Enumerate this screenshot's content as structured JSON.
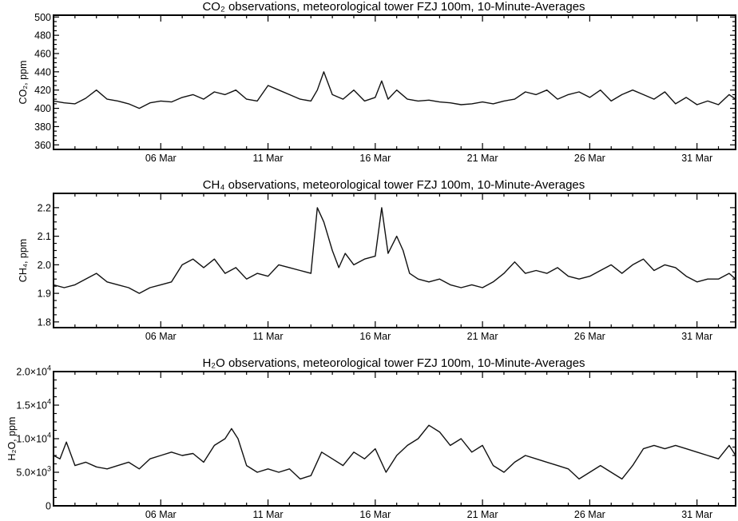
{
  "chart_data": [
    {
      "type": "line",
      "title": "CO₂ observations, meteorological tower FZJ 100m, 10-Minute-Averages",
      "ylabel": "CO₂, ppm",
      "xlabel": "",
      "xlim": [
        1,
        32.8
      ],
      "ylim": [
        355,
        502
      ],
      "yticks": [
        360,
        380,
        400,
        420,
        440,
        460,
        480,
        500
      ],
      "ytick_labels": [
        "360",
        "380",
        "400",
        "420",
        "440",
        "460",
        "480",
        "500"
      ],
      "xticks": [
        6,
        11,
        16,
        21,
        26,
        31
      ],
      "xtick_labels": [
        "06 Mar",
        "11 Mar",
        "16 Mar",
        "21 Mar",
        "26 Mar",
        "31 Mar"
      ],
      "grid": false,
      "series": [
        {
          "x": [
            1.0,
            1.5,
            2.0,
            2.5,
            3.0,
            3.5,
            4.0,
            4.5,
            5.0,
            5.5,
            6.0,
            6.5,
            7.0,
            7.5,
            8.0,
            8.5,
            9.0,
            9.5,
            10.0,
            10.5,
            11.0,
            11.5,
            12.0,
            12.5,
            13.0,
            13.3,
            13.6,
            14.0,
            14.5,
            15.0,
            15.5,
            16.0,
            16.3,
            16.6,
            17.0,
            17.5,
            18.0,
            18.5,
            19.0,
            19.5,
            20.0,
            20.5,
            21.0,
            21.5,
            22.0,
            22.5,
            23.0,
            23.5,
            24.0,
            24.5,
            25.0,
            25.5,
            26.0,
            26.5,
            27.0,
            27.5,
            28.0,
            28.5,
            29.0,
            29.5,
            30.0,
            30.5,
            31.0,
            31.5,
            32.0,
            32.5,
            32.8
          ],
          "y": [
            408,
            406,
            405,
            411,
            420,
            410,
            408,
            405,
            400,
            406,
            408,
            407,
            412,
            415,
            410,
            418,
            415,
            420,
            410,
            408,
            425,
            420,
            415,
            410,
            408,
            420,
            440,
            415,
            410,
            420,
            408,
            412,
            430,
            410,
            420,
            410,
            408,
            409,
            407,
            406,
            404,
            405,
            407,
            405,
            408,
            410,
            418,
            415,
            420,
            410,
            415,
            418,
            412,
            420,
            408,
            415,
            420,
            415,
            410,
            418,
            405,
            412,
            404,
            408,
            404,
            415,
            410
          ]
        }
      ]
    },
    {
      "type": "line",
      "title": "CH₄ observations, meteorological tower FZJ 100m, 10-Minute-Averages",
      "ylabel": "CH₄, ppm",
      "xlabel": "",
      "xlim": [
        1,
        32.8
      ],
      "ylim": [
        1.78,
        2.25
      ],
      "yticks": [
        1.8,
        1.9,
        2.0,
        2.1,
        2.2
      ],
      "ytick_labels": [
        "1.8",
        "1.9",
        "2.0",
        "2.1",
        "2.2"
      ],
      "xticks": [
        6,
        11,
        16,
        21,
        26,
        31
      ],
      "xtick_labels": [
        "06 Mar",
        "11 Mar",
        "16 Mar",
        "21 Mar",
        "26 Mar",
        "31 Mar"
      ],
      "grid": false,
      "series": [
        {
          "x": [
            1.0,
            1.5,
            2.0,
            2.5,
            3.0,
            3.5,
            4.0,
            4.5,
            5.0,
            5.5,
            6.0,
            6.5,
            7.0,
            7.5,
            8.0,
            8.5,
            9.0,
            9.5,
            10.0,
            10.5,
            11.0,
            11.5,
            12.0,
            12.5,
            13.0,
            13.3,
            13.6,
            14.0,
            14.3,
            14.6,
            15.0,
            15.5,
            16.0,
            16.3,
            16.6,
            17.0,
            17.3,
            17.6,
            18.0,
            18.5,
            19.0,
            19.5,
            20.0,
            20.5,
            21.0,
            21.5,
            22.0,
            22.5,
            23.0,
            23.5,
            24.0,
            24.5,
            25.0,
            25.5,
            26.0,
            26.5,
            27.0,
            27.5,
            28.0,
            28.5,
            29.0,
            29.5,
            30.0,
            30.5,
            31.0,
            31.5,
            32.0,
            32.5,
            32.8
          ],
          "y": [
            1.93,
            1.92,
            1.93,
            1.95,
            1.97,
            1.94,
            1.93,
            1.92,
            1.9,
            1.92,
            1.93,
            1.94,
            2.0,
            2.02,
            1.99,
            2.02,
            1.97,
            1.99,
            1.95,
            1.97,
            1.96,
            2.0,
            1.99,
            1.98,
            1.97,
            2.2,
            2.15,
            2.05,
            1.99,
            2.04,
            2.0,
            2.02,
            2.03,
            2.2,
            2.04,
            2.1,
            2.05,
            1.97,
            1.95,
            1.94,
            1.95,
            1.93,
            1.92,
            1.93,
            1.92,
            1.94,
            1.97,
            2.01,
            1.97,
            1.98,
            1.97,
            1.99,
            1.96,
            1.95,
            1.96,
            1.98,
            2.0,
            1.97,
            2.0,
            2.02,
            1.98,
            2.0,
            1.99,
            1.96,
            1.94,
            1.95,
            1.95,
            1.97,
            1.95
          ]
        }
      ]
    },
    {
      "type": "line",
      "title": "H₂O observations, meteorological tower FZJ 100m, 10-Minute-Averages",
      "ylabel": "H₂O, ppm",
      "xlabel": "",
      "xlim": [
        1,
        32.8
      ],
      "ylim": [
        0,
        20000
      ],
      "yticks": [
        0,
        5000,
        10000,
        15000,
        20000
      ],
      "ytick_labels": [
        {
          "mantissa": "0",
          "exponent": ""
        },
        {
          "mantissa": "5.0×10",
          "exponent": "3"
        },
        {
          "mantissa": "1.0×10",
          "exponent": "4"
        },
        {
          "mantissa": "1.5×10",
          "exponent": "4"
        },
        {
          "mantissa": "2.0×10",
          "exponent": "4"
        }
      ],
      "xticks": [
        6,
        11,
        16,
        21,
        26,
        31
      ],
      "xtick_labels": [
        "06 Mar",
        "11 Mar",
        "16 Mar",
        "21 Mar",
        "26 Mar",
        "31 Mar"
      ],
      "grid": false,
      "series": [
        {
          "x": [
            1.0,
            1.3,
            1.6,
            2.0,
            2.5,
            3.0,
            3.5,
            4.0,
            4.5,
            5.0,
            5.5,
            6.0,
            6.5,
            7.0,
            7.5,
            8.0,
            8.5,
            9.0,
            9.3,
            9.6,
            10.0,
            10.5,
            11.0,
            11.5,
            12.0,
            12.5,
            13.0,
            13.5,
            14.0,
            14.5,
            15.0,
            15.5,
            16.0,
            16.5,
            17.0,
            17.5,
            18.0,
            18.5,
            19.0,
            19.5,
            20.0,
            20.5,
            21.0,
            21.5,
            22.0,
            22.5,
            23.0,
            23.5,
            24.0,
            24.5,
            25.0,
            25.5,
            26.0,
            26.5,
            27.0,
            27.5,
            28.0,
            28.5,
            29.0,
            29.5,
            30.0,
            30.5,
            31.0,
            31.5,
            32.0,
            32.5,
            32.8
          ],
          "y": [
            7500,
            7000,
            9500,
            6000,
            6500,
            5800,
            5500,
            6000,
            6500,
            5500,
            7000,
            7500,
            8000,
            7500,
            7800,
            6500,
            9000,
            10000,
            11500,
            10000,
            6000,
            5000,
            5500,
            5000,
            5500,
            4000,
            4500,
            8000,
            7000,
            6000,
            8000,
            7000,
            8500,
            5000,
            7500,
            9000,
            10000,
            12000,
            11000,
            9000,
            10000,
            8000,
            9000,
            6000,
            5000,
            6500,
            7500,
            7000,
            6500,
            6000,
            5500,
            4000,
            5000,
            6000,
            5000,
            4000,
            6000,
            8500,
            9000,
            8500,
            9000,
            8500,
            8000,
            7500,
            7000,
            9000,
            7500
          ]
        }
      ]
    }
  ]
}
